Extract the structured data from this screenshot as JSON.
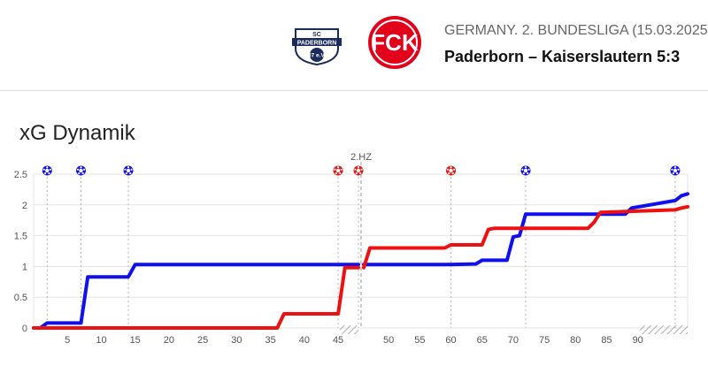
{
  "header": {
    "home_logo_text_top": "SC",
    "home_logo_text_main": "PADERBORN",
    "home_logo_text_bottom": "07 e.V.",
    "away_logo_text": "FCK",
    "league": "GERMANY. 2. BUNDESLIGA (15.03.2025)",
    "match": "Paderborn – Kaiserslautern 5:3"
  },
  "colors": {
    "home": "#1010ee",
    "away": "#ee1111",
    "grid": "#e6e6e6"
  },
  "chart_data": {
    "type": "line",
    "title": "xG Dynamik",
    "halftime_label": "2.HZ",
    "y_ticks": [
      "0",
      "0.5",
      "1",
      "1.5",
      "2",
      "2.5"
    ],
    "x_ticks_first_half": [
      "5",
      "10",
      "15",
      "20",
      "25",
      "30",
      "35",
      "40",
      "45"
    ],
    "x_ticks_second_half": [
      "50",
      "55",
      "60",
      "65",
      "70",
      "75",
      "80",
      "85",
      "90"
    ],
    "ylim": [
      0,
      2.5
    ],
    "first_half_minutes": [
      0,
      45
    ],
    "first_half_stoppage_end": 48,
    "second_half_minutes": [
      46,
      90
    ],
    "second_half_stoppage_end": 98,
    "series": [
      {
        "team": "home",
        "first_half": [
          [
            0,
            0
          ],
          [
            1,
            0
          ],
          [
            2,
            0.08
          ],
          [
            7,
            0.08
          ],
          [
            8,
            0.83
          ],
          [
            14,
            0.83
          ],
          [
            15,
            1.03
          ],
          [
            48,
            1.03
          ]
        ],
        "second_half": [
          [
            46,
            1.03
          ],
          [
            59,
            1.03
          ],
          [
            64,
            1.04
          ],
          [
            65,
            1.1
          ],
          [
            69,
            1.1
          ],
          [
            70,
            1.48
          ],
          [
            71,
            1.5
          ],
          [
            72,
            1.85
          ],
          [
            88,
            1.85
          ],
          [
            89,
            1.95
          ],
          [
            96,
            2.07
          ],
          [
            97,
            2.15
          ],
          [
            98,
            2.18
          ]
        ]
      },
      {
        "team": "away",
        "first_half": [
          [
            0,
            0
          ],
          [
            36,
            0
          ],
          [
            37,
            0.23
          ],
          [
            45,
            0.23
          ],
          [
            46,
            0.98
          ],
          [
            48,
            0.98
          ]
        ],
        "second_half": [
          [
            46,
            0.98
          ],
          [
            47,
            1.3
          ],
          [
            59,
            1.3
          ],
          [
            60,
            1.35
          ],
          [
            65,
            1.35
          ],
          [
            66,
            1.6
          ],
          [
            67,
            1.62
          ],
          [
            82,
            1.62
          ],
          [
            83,
            1.72
          ],
          [
            84,
            1.88
          ],
          [
            96,
            1.92
          ],
          [
            97,
            1.95
          ],
          [
            98,
            1.97
          ]
        ]
      }
    ],
    "goals": [
      {
        "team": "home",
        "half": 1,
        "minute": 2
      },
      {
        "team": "home",
        "half": 1,
        "minute": 7
      },
      {
        "team": "home",
        "half": 1,
        "minute": 14
      },
      {
        "team": "away",
        "half": 1,
        "minute": 45
      },
      {
        "team": "away",
        "half": 1,
        "minute": 48
      },
      {
        "team": "away",
        "half": 2,
        "minute": 60
      },
      {
        "team": "home",
        "half": 2,
        "minute": 72
      },
      {
        "team": "home",
        "half": 2,
        "minute": 96
      }
    ]
  }
}
